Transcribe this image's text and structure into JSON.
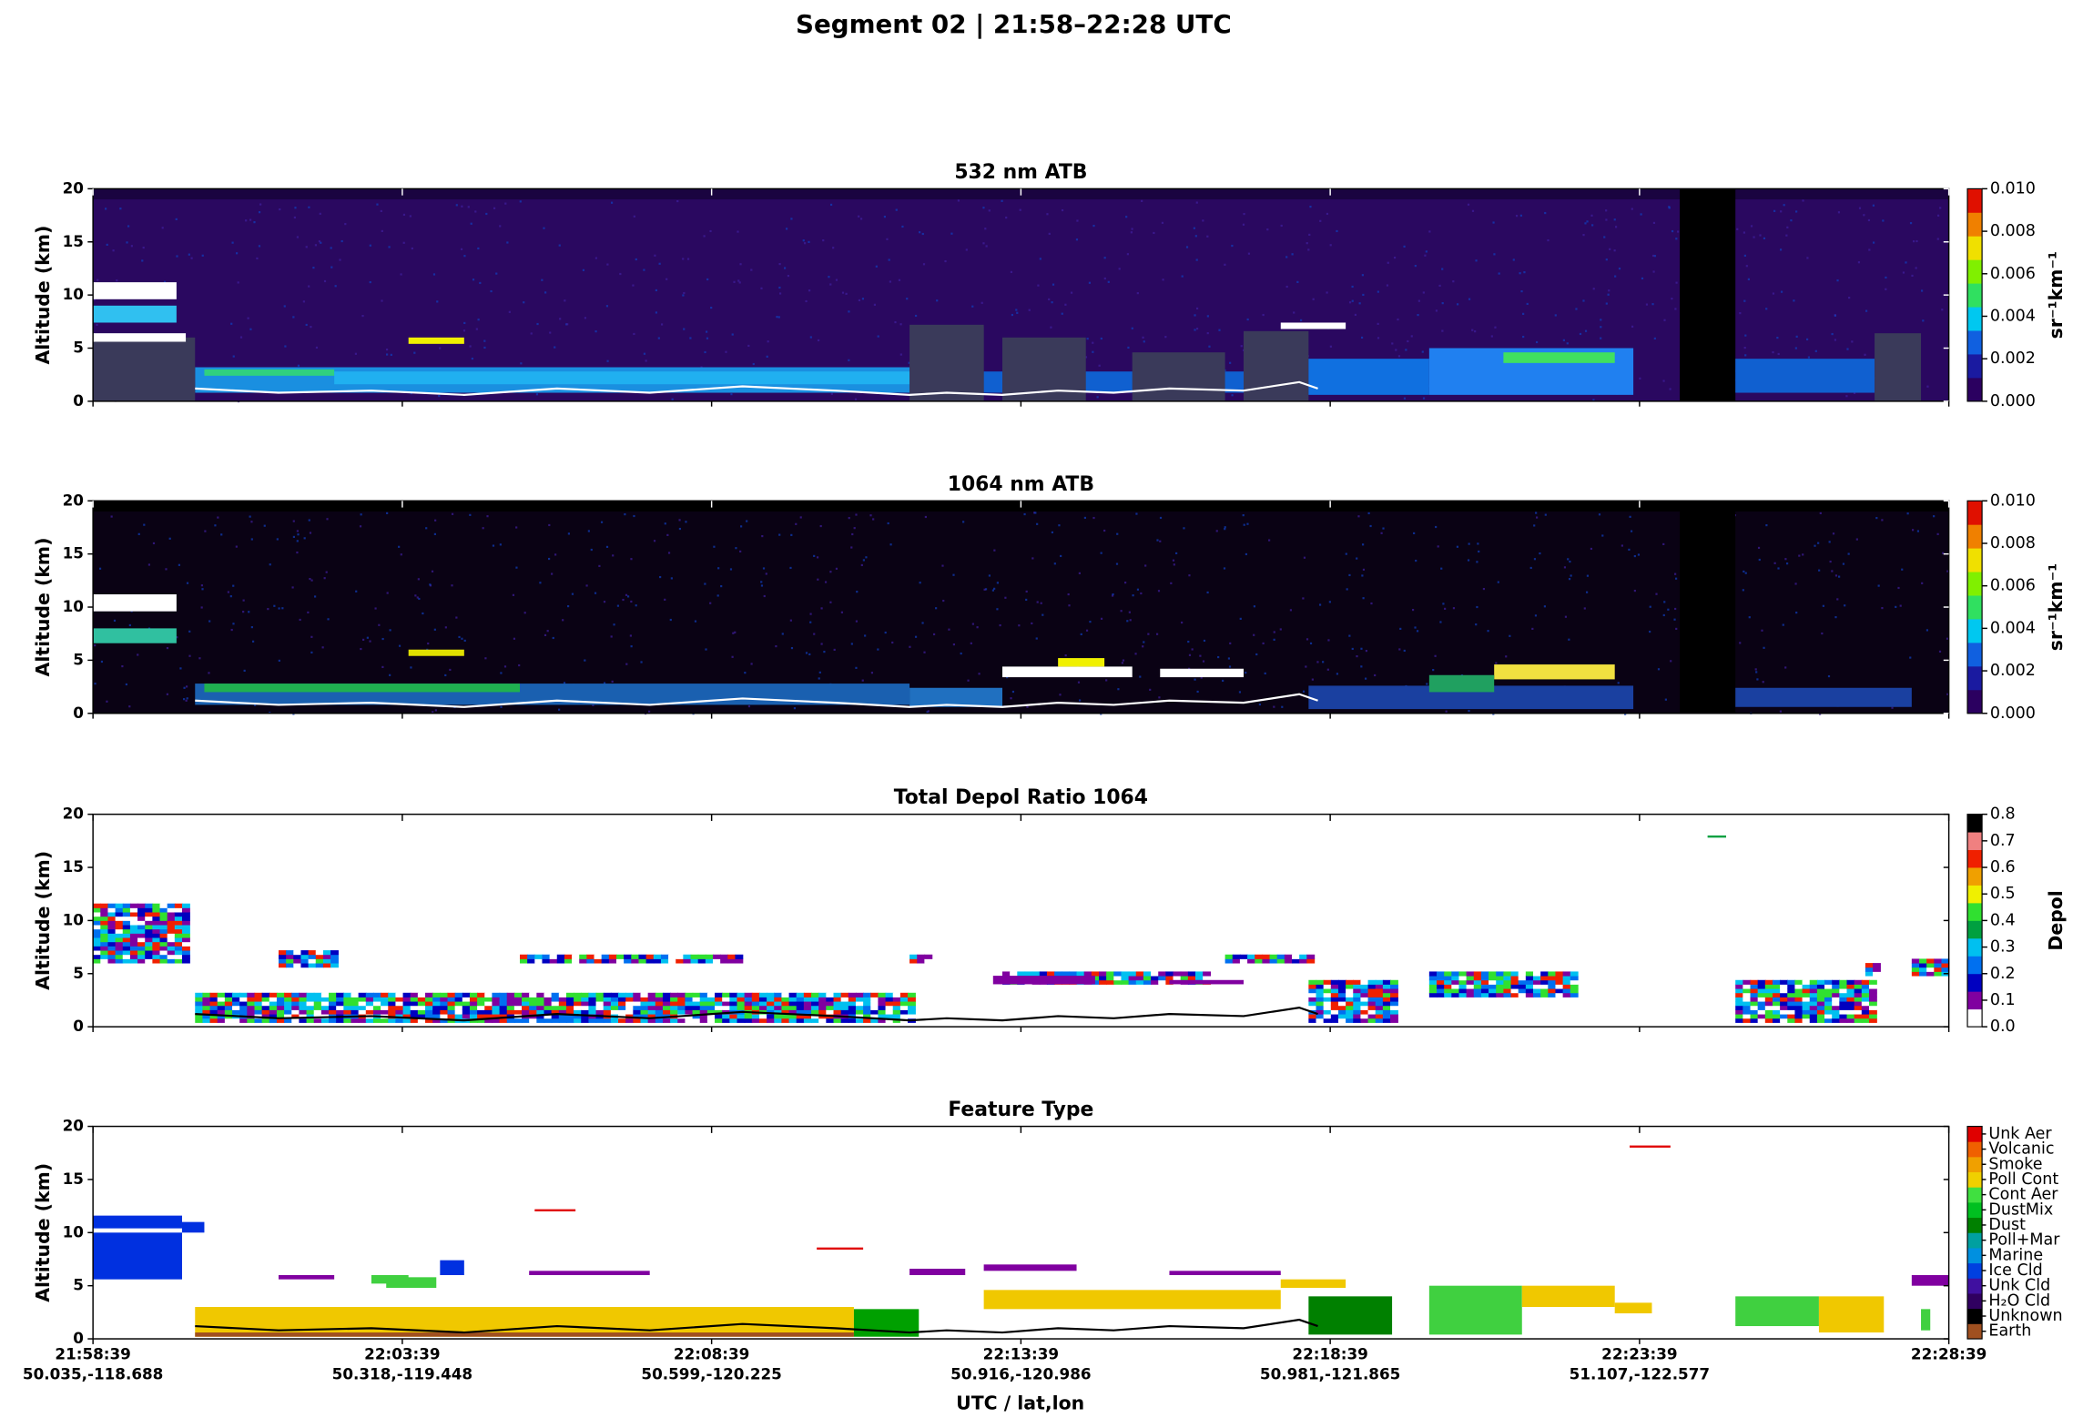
{
  "title": "Segment 02  |  21:58–22:28 UTC",
  "xlabel": "UTC / lat,lon",
  "xticks": [
    {
      "time": "21:58:39",
      "latlon": "50.035,-118.688"
    },
    {
      "time": "22:03:39",
      "latlon": "50.318,-119.448"
    },
    {
      "time": "22:08:39",
      "latlon": "50.599,-120.225"
    },
    {
      "time": "22:13:39",
      "latlon": "50.916,-120.986"
    },
    {
      "time": "22:18:39",
      "latlon": "50.981,-121.865"
    },
    {
      "time": "22:23:39",
      "latlon": "51.107,-122.577"
    },
    {
      "time": "22:28:39",
      "latlon": null
    }
  ],
  "last_xtick_label": "22:28:39",
  "chart_data": [
    {
      "type": "heatmap",
      "title": "532 nm ATB",
      "ylabel": "Altitude (km)",
      "ylim": [
        0,
        20
      ],
      "yticks": [
        0,
        5,
        10,
        15,
        20
      ],
      "colorbar": {
        "label": "sr⁻¹km⁻¹",
        "lim": [
          0,
          0.01
        ],
        "ticks": [
          {
            "value": 0,
            "label": "0.000"
          },
          0.002,
          0.004,
          0.006,
          0.008,
          {
            "value": 0.01,
            "label": "0.010"
          }
        ],
        "colors": [
          "#2b0060",
          "#1a1aa0",
          "#1060e0",
          "#00c8f0",
          "#30e060",
          "#80f000",
          "#f0e000",
          "#f08000",
          "#e01000"
        ]
      }
    },
    {
      "type": "heatmap",
      "title": "1064 nm ATB",
      "ylabel": "Altitude (km)",
      "ylim": [
        0,
        20
      ],
      "yticks": [
        0,
        5,
        10,
        15,
        20
      ],
      "colorbar": {
        "label": "sr⁻¹km⁻¹",
        "lim": [
          0,
          0.01
        ],
        "ticks": [
          {
            "value": 0,
            "label": "0.000"
          },
          0.002,
          0.004,
          0.006,
          0.008,
          {
            "value": 0.01,
            "label": "0.010"
          }
        ],
        "colors": [
          "#2b0060",
          "#1a1aa0",
          "#1060e0",
          "#00c8f0",
          "#30e060",
          "#80f000",
          "#f0e000",
          "#f08000",
          "#e01000"
        ]
      }
    },
    {
      "type": "heatmap",
      "title": "Total Depol Ratio 1064",
      "ylabel": "Altitude (km)",
      "ylim": [
        0,
        20
      ],
      "yticks": [
        0,
        5,
        10,
        15,
        20
      ],
      "colorbar": {
        "label": "Depol",
        "lim": [
          0,
          0.8
        ],
        "ticks": [
          {
            "value": 0,
            "label": "0.0"
          },
          0.1,
          0.2,
          0.3,
          0.4,
          0.5,
          0.6,
          0.7,
          0.8
        ],
        "colors": [
          "#ffffff",
          "#8000a0",
          "#0000c0",
          "#0070f0",
          "#00c0f0",
          "#00a040",
          "#30e030",
          "#f0f000",
          "#f0a000",
          "#f02000",
          "#f08080",
          "#000000"
        ]
      }
    },
    {
      "type": "heatmap",
      "title": "Feature Type",
      "ylabel": "Altitude (km)",
      "ylim": [
        0,
        20
      ],
      "yticks": [
        0,
        5,
        10,
        15,
        20
      ],
      "colorbar": {
        "categories": [
          "Earth",
          "Unknown",
          "H₂O Cld",
          "Unk Cld",
          "Ice Cld",
          "Marine",
          "Poll+Mar",
          "Dust",
          "DustMix",
          "Cont Aer",
          "Poll Cont",
          "Smoke",
          "Volcanic",
          "Unk Aer"
        ],
        "colors": [
          "#a05020",
          "#000000",
          "#300060",
          "#4010a0",
          "#0040e0",
          "#0090e0",
          "#00a0a0",
          "#008000",
          "#00c020",
          "#40e040",
          "#f0d000",
          "#f0a000",
          "#f06000",
          "#e00000"
        ]
      }
    }
  ]
}
